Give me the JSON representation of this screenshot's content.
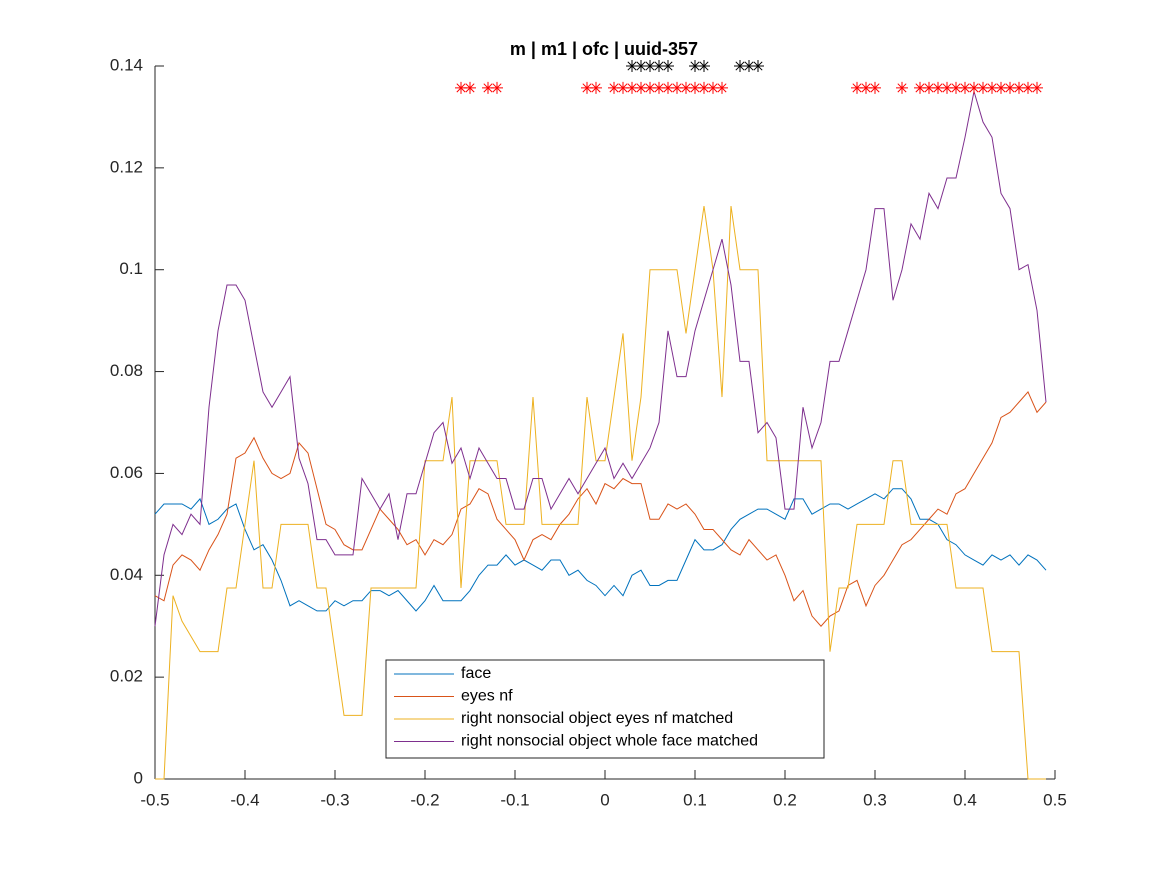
{
  "chart_data": {
    "type": "line",
    "title": "m | m1 | ofc | uuid-357",
    "x": [
      -0.5,
      -0.49,
      -0.48,
      -0.47,
      -0.46,
      -0.45,
      -0.44,
      -0.43,
      -0.42,
      -0.41,
      -0.4,
      -0.39,
      -0.38,
      -0.37,
      -0.36,
      -0.35,
      -0.34,
      -0.33,
      -0.32,
      -0.31,
      -0.3,
      -0.29,
      -0.28,
      -0.27,
      -0.26,
      -0.25,
      -0.24,
      -0.23,
      -0.22,
      -0.21,
      -0.2,
      -0.19,
      -0.18,
      -0.17,
      -0.16,
      -0.15,
      -0.14,
      -0.13,
      -0.12,
      -0.11,
      -0.1,
      -0.09,
      -0.08,
      -0.07,
      -0.06,
      -0.05,
      -0.04,
      -0.03,
      -0.02,
      -0.01,
      0,
      0.01,
      0.02,
      0.03,
      0.04,
      0.05,
      0.06,
      0.07,
      0.08,
      0.09,
      0.1,
      0.11,
      0.12,
      0.13,
      0.14,
      0.15,
      0.16,
      0.17,
      0.18,
      0.19,
      0.2,
      0.21,
      0.22,
      0.23,
      0.24,
      0.25,
      0.26,
      0.27,
      0.28,
      0.29,
      0.3,
      0.31,
      0.32,
      0.33,
      0.34,
      0.35,
      0.36,
      0.37,
      0.38,
      0.39,
      0.4,
      0.41,
      0.42,
      0.43,
      0.44,
      0.45,
      0.46,
      0.47,
      0.48,
      0.49
    ],
    "series": [
      {
        "name": "face",
        "color": "#0072bd",
        "values": [
          0.052,
          0.054,
          0.054,
          0.054,
          0.053,
          0.055,
          0.05,
          0.051,
          0.053,
          0.054,
          0.049,
          0.045,
          0.046,
          0.043,
          0.039,
          0.034,
          0.035,
          0.034,
          0.033,
          0.033,
          0.035,
          0.034,
          0.035,
          0.035,
          0.037,
          0.037,
          0.036,
          0.037,
          0.035,
          0.033,
          0.035,
          0.038,
          0.035,
          0.035,
          0.035,
          0.037,
          0.04,
          0.042,
          0.042,
          0.044,
          0.042,
          0.043,
          0.042,
          0.041,
          0.043,
          0.043,
          0.04,
          0.041,
          0.039,
          0.038,
          0.036,
          0.038,
          0.036,
          0.04,
          0.041,
          0.038,
          0.038,
          0.039,
          0.039,
          0.043,
          0.047,
          0.045,
          0.045,
          0.046,
          0.049,
          0.051,
          0.052,
          0.053,
          0.053,
          0.052,
          0.051,
          0.055,
          0.055,
          0.052,
          0.053,
          0.054,
          0.054,
          0.053,
          0.054,
          0.055,
          0.056,
          0.055,
          0.057,
          0.057,
          0.055,
          0.051,
          0.051,
          0.05,
          0.047,
          0.046,
          0.044,
          0.043,
          0.042,
          0.044,
          0.043,
          0.044,
          0.042,
          0.044,
          0.043,
          0.041
        ]
      },
      {
        "name": "eyes nf",
        "color": "#d95319",
        "values": [
          0.036,
          0.035,
          0.042,
          0.044,
          0.043,
          0.041,
          0.045,
          0.048,
          0.052,
          0.063,
          0.064,
          0.067,
          0.063,
          0.06,
          0.059,
          0.06,
          0.066,
          0.064,
          0.057,
          0.05,
          0.049,
          0.046,
          0.045,
          0.045,
          0.049,
          0.053,
          0.051,
          0.049,
          0.046,
          0.047,
          0.044,
          0.047,
          0.046,
          0.048,
          0.053,
          0.054,
          0.057,
          0.056,
          0.051,
          0.049,
          0.047,
          0.043,
          0.047,
          0.048,
          0.047,
          0.05,
          0.052,
          0.055,
          0.057,
          0.054,
          0.058,
          0.057,
          0.059,
          0.058,
          0.058,
          0.051,
          0.051,
          0.054,
          0.053,
          0.054,
          0.052,
          0.049,
          0.049,
          0.047,
          0.045,
          0.044,
          0.047,
          0.045,
          0.043,
          0.044,
          0.04,
          0.035,
          0.037,
          0.032,
          0.03,
          0.032,
          0.033,
          0.038,
          0.039,
          0.034,
          0.038,
          0.04,
          0.043,
          0.046,
          0.047,
          0.049,
          0.051,
          0.053,
          0.052,
          0.056,
          0.057,
          0.06,
          0.063,
          0.066,
          0.071,
          0.072,
          0.074,
          0.076,
          0.072,
          0.074
        ]
      },
      {
        "name": "right nonsocial object eyes nf matched",
        "color": "#edb120",
        "values": [
          0,
          0,
          0.036,
          0.031,
          0.028,
          0.025,
          0.025,
          0.025,
          0.0375,
          0.0375,
          0.05,
          0.0625,
          0.0375,
          0.0375,
          0.05,
          0.05,
          0.05,
          0.05,
          0.0375,
          0.0375,
          0.025,
          0.0125,
          0.0125,
          0.0125,
          0.0375,
          0.0375,
          0.0375,
          0.0375,
          0.0375,
          0.0375,
          0.0625,
          0.0625,
          0.0625,
          0.075,
          0.0375,
          0.0625,
          0.0625,
          0.0625,
          0.0625,
          0.05,
          0.05,
          0.05,
          0.075,
          0.05,
          0.05,
          0.05,
          0.05,
          0.05,
          0.075,
          0.0625,
          0.0625,
          0.075,
          0.0875,
          0.0625,
          0.075,
          0.1,
          0.1,
          0.1,
          0.1,
          0.0875,
          0.1,
          0.1125,
          0.1,
          0.075,
          0.1125,
          0.1,
          0.1,
          0.1,
          0.0625,
          0.0625,
          0.0625,
          0.0625,
          0.0625,
          0.0625,
          0.0625,
          0.025,
          0.0375,
          0.0375,
          0.05,
          0.05,
          0.05,
          0.05,
          0.0625,
          0.0625,
          0.05,
          0.05,
          0.05,
          0.05,
          0.05,
          0.0375,
          0.0375,
          0.0375,
          0.0375,
          0.025,
          0.025,
          0.025,
          0.025,
          0,
          0,
          0
        ]
      },
      {
        "name": "right nonsocial object whole face matched",
        "color": "#7e2f8e",
        "values": [
          0.03,
          0.044,
          0.05,
          0.048,
          0.052,
          0.05,
          0.073,
          0.088,
          0.097,
          0.097,
          0.094,
          0.085,
          0.076,
          0.073,
          0.076,
          0.079,
          0.063,
          0.058,
          0.047,
          0.047,
          0.044,
          0.044,
          0.044,
          0.059,
          0.056,
          0.053,
          0.056,
          0.047,
          0.056,
          0.056,
          0.062,
          0.068,
          0.07,
          0.062,
          0.065,
          0.059,
          0.065,
          0.062,
          0.059,
          0.059,
          0.053,
          0.053,
          0.059,
          0.059,
          0.053,
          0.056,
          0.059,
          0.056,
          0.059,
          0.062,
          0.065,
          0.059,
          0.062,
          0.059,
          0.062,
          0.065,
          0.07,
          0.088,
          0.079,
          0.079,
          0.088,
          0.094,
          0.1,
          0.106,
          0.097,
          0.082,
          0.082,
          0.068,
          0.07,
          0.067,
          0.053,
          0.053,
          0.073,
          0.065,
          0.07,
          0.082,
          0.082,
          0.088,
          0.094,
          0.1,
          0.112,
          0.112,
          0.094,
          0.1,
          0.109,
          0.106,
          0.115,
          0.112,
          0.118,
          0.118,
          0.126,
          0.135,
          0.129,
          0.126,
          0.115,
          0.112,
          0.1,
          0.101,
          0.092,
          0.074
        ]
      }
    ],
    "markers": [
      {
        "color": "#000000",
        "y": 0.14,
        "x": [
          0.03,
          0.04,
          0.05,
          0.06,
          0.07,
          0.1,
          0.11,
          0.15,
          0.16,
          0.17
        ]
      },
      {
        "color": "#ff0000",
        "y": 0.1357,
        "x": [
          -0.16,
          -0.15,
          -0.13,
          -0.12,
          -0.02,
          -0.01,
          0.01,
          0.02,
          0.03,
          0.04,
          0.05,
          0.06,
          0.07,
          0.08,
          0.09,
          0.1,
          0.11,
          0.12,
          0.13,
          0.28,
          0.29,
          0.3,
          0.33,
          0.35,
          0.36,
          0.37,
          0.38,
          0.39,
          0.4,
          0.41,
          0.42,
          0.43,
          0.44,
          0.45,
          0.46,
          0.47,
          0.48
        ]
      }
    ],
    "xlim": [
      -0.5,
      0.5
    ],
    "xticks": [
      -0.5,
      -0.4,
      -0.3,
      -0.2,
      -0.1,
      0,
      0.1,
      0.2,
      0.3,
      0.4,
      0.5
    ],
    "ylim": [
      0,
      0.14
    ],
    "yticks": [
      0,
      0.02,
      0.04,
      0.06,
      0.08,
      0.1,
      0.12,
      0.14
    ],
    "legend": "bottom-center"
  }
}
